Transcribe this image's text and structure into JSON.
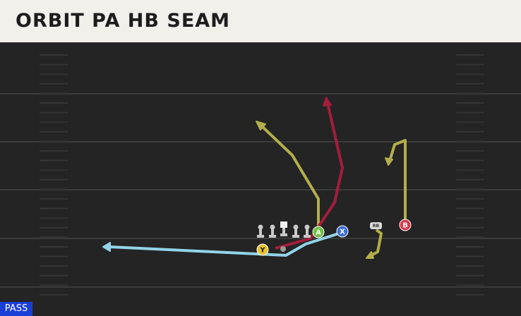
{
  "header": {
    "title": "ORBIT PA HB SEAM"
  },
  "play_type": "PASS",
  "players": [
    {
      "label": "A"
    },
    {
      "label": "X"
    },
    {
      "label": "Y"
    },
    {
      "label": "B"
    },
    {
      "label": "RB"
    }
  ]
}
